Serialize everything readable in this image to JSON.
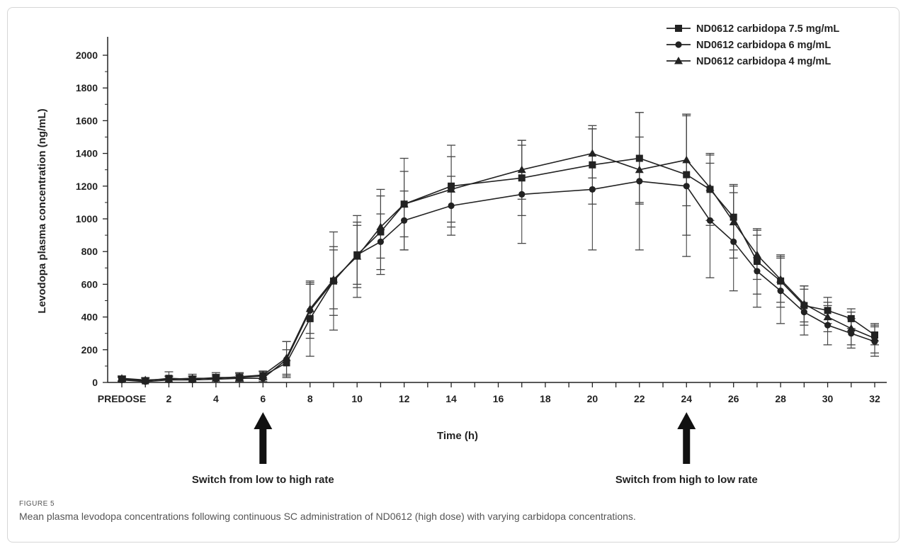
{
  "figure": {
    "label": "FIGURE 5",
    "caption": "Mean plasma levodopa concentrations following continuous SC administration of ND0612 (high dose) with varying carbidopa concentrations."
  },
  "colors": {
    "series": "#222222",
    "arrow": "#111111",
    "axis": "#222222"
  },
  "annotations": [
    {
      "x": 6,
      "text": "Switch from low to high rate"
    },
    {
      "x": 24,
      "text": "Switch from high to low rate"
    }
  ],
  "chart_data": {
    "type": "line",
    "title": "",
    "xlabel": "Time (h)",
    "ylabel": "Levodopa plasma concentration (ng/mL)",
    "xlim": [
      0,
      32
    ],
    "ylim": [
      0,
      2000
    ],
    "x_ticks": [
      0,
      2,
      4,
      6,
      8,
      10,
      12,
      14,
      16,
      18,
      20,
      22,
      24,
      26,
      28,
      30,
      32
    ],
    "x_tick_labels": [
      "PREDOSE",
      "2",
      "4",
      "6",
      "8",
      "10",
      "12",
      "14",
      "16",
      "18",
      "20",
      "22",
      "24",
      "26",
      "28",
      "30",
      "32"
    ],
    "y_ticks": [
      0,
      200,
      400,
      600,
      800,
      1000,
      1200,
      1400,
      1600,
      1800,
      2000
    ],
    "grid": false,
    "legend_position": "top-right",
    "x": [
      0,
      1,
      2,
      3,
      4,
      5,
      6,
      7,
      8,
      9,
      10,
      11,
      12,
      14,
      17,
      20,
      22,
      24,
      25,
      26,
      27,
      28,
      29,
      30,
      31,
      32
    ],
    "series": [
      {
        "name": "ND0612 carbidopa 7.5 mg/mL",
        "marker": "square",
        "values": [
          20,
          10,
          25,
          20,
          30,
          30,
          40,
          120,
          390,
          620,
          780,
          920,
          1090,
          1200,
          1250,
          1330,
          1370,
          1270,
          1180,
          1010,
          740,
          620,
          470,
          440,
          390,
          290
        ],
        "errors": [
          15,
          15,
          40,
          20,
          30,
          25,
          25,
          80,
          230,
          300,
          180,
          260,
          280,
          250,
          230,
          240,
          280,
          370,
          220,
          200,
          200,
          160,
          120,
          80,
          60,
          60
        ]
      },
      {
        "name": "ND0612 carbidopa 6 mg/mL",
        "marker": "circle",
        "values": [
          15,
          5,
          15,
          15,
          20,
          25,
          25,
          140,
          440,
          620,
          780,
          860,
          990,
          1080,
          1150,
          1180,
          1230,
          1200,
          990,
          860,
          680,
          560,
          430,
          350,
          300,
          250
        ],
        "errors": [
          15,
          10,
          20,
          20,
          20,
          20,
          20,
          110,
          170,
          210,
          200,
          170,
          180,
          180,
          300,
          370,
          420,
          430,
          350,
          300,
          220,
          200,
          140,
          120,
          90,
          90
        ]
      },
      {
        "name": "ND0612 carbidopa 4 mg/mL",
        "marker": "triangle",
        "values": [
          25,
          15,
          20,
          25,
          25,
          35,
          45,
          150,
          450,
          630,
          770,
          950,
          1090,
          1180,
          1300,
          1400,
          1300,
          1360,
          1190,
          980,
          780,
          630,
          480,
          400,
          330,
          270
        ],
        "errors": [
          15,
          15,
          20,
          25,
          25,
          25,
          25,
          100,
          150,
          180,
          250,
          190,
          200,
          200,
          180,
          150,
          200,
          280,
          200,
          220,
          150,
          140,
          110,
          90,
          100,
          90
        ]
      }
    ]
  }
}
